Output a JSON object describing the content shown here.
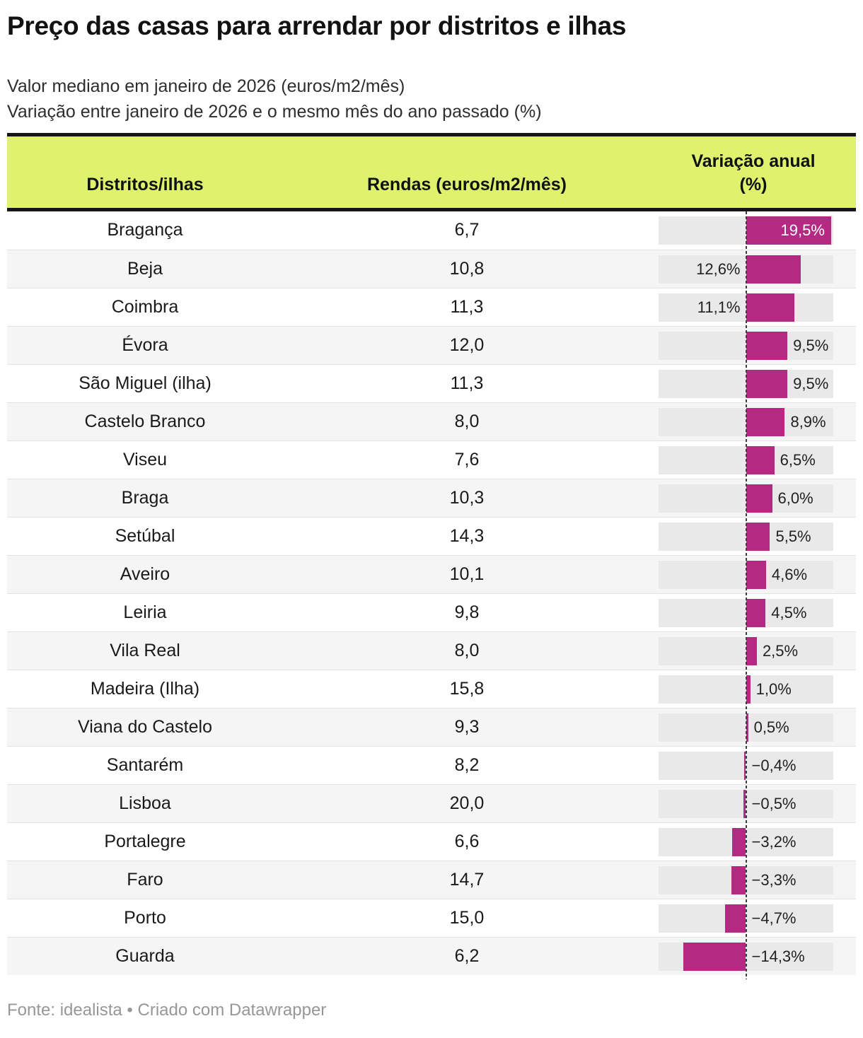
{
  "header": {
    "title": "Preço das casas para arrendar por distritos e ilhas",
    "subtitle_line1": "Valor mediano em janeiro de 2026 (euros/m2/mês)",
    "subtitle_line2": "Variação entre janeiro de 2026 e o mesmo mês do ano passado (%)"
  },
  "table": {
    "col1_header": "Distritos/ilhas",
    "col2_header": "Rendas (euros/m2/mês)",
    "col3_header_line1": "Variação anual",
    "col3_header_line2": "(%)"
  },
  "rows": [
    {
      "district": "Bragança",
      "renda": "6,7",
      "variacao": 19.5,
      "variacao_label": "19,5%"
    },
    {
      "district": "Beja",
      "renda": "10,8",
      "variacao": 12.6,
      "variacao_label": "12,6%"
    },
    {
      "district": "Coimbra",
      "renda": "11,3",
      "variacao": 11.1,
      "variacao_label": "11,1%"
    },
    {
      "district": "Évora",
      "renda": "12,0",
      "variacao": 9.5,
      "variacao_label": "9,5%"
    },
    {
      "district": "São Miguel (ilha)",
      "renda": "11,3",
      "variacao": 9.5,
      "variacao_label": "9,5%"
    },
    {
      "district": "Castelo Branco",
      "renda": "8,0",
      "variacao": 8.9,
      "variacao_label": "8,9%"
    },
    {
      "district": "Viseu",
      "renda": "7,6",
      "variacao": 6.5,
      "variacao_label": "6,5%"
    },
    {
      "district": "Braga",
      "renda": "10,3",
      "variacao": 6.0,
      "variacao_label": "6,0%"
    },
    {
      "district": "Setúbal",
      "renda": "14,3",
      "variacao": 5.5,
      "variacao_label": "5,5%"
    },
    {
      "district": "Aveiro",
      "renda": "10,1",
      "variacao": 4.6,
      "variacao_label": "4,6%"
    },
    {
      "district": "Leiria",
      "renda": "9,8",
      "variacao": 4.5,
      "variacao_label": "4,5%"
    },
    {
      "district": "Vila Real",
      "renda": "8,0",
      "variacao": 2.5,
      "variacao_label": "2,5%"
    },
    {
      "district": "Madeira (Ilha)",
      "renda": "15,8",
      "variacao": 1.0,
      "variacao_label": "1,0%"
    },
    {
      "district": "Viana do Castelo",
      "renda": "9,3",
      "variacao": 0.5,
      "variacao_label": "0,5%"
    },
    {
      "district": "Santarém",
      "renda": "8,2",
      "variacao": -0.4,
      "variacao_label": "−0,4%"
    },
    {
      "district": "Lisboa",
      "renda": "20,0",
      "variacao": -0.5,
      "variacao_label": "−0,5%"
    },
    {
      "district": "Portalegre",
      "renda": "6,6",
      "variacao": -3.2,
      "variacao_label": "−3,2%"
    },
    {
      "district": "Faro",
      "renda": "14,7",
      "variacao": -3.3,
      "variacao_label": "−3,3%"
    },
    {
      "district": "Porto",
      "renda": "15,0",
      "variacao": -4.7,
      "variacao_label": "−4,7%"
    },
    {
      "district": "Guarda",
      "renda": "6,2",
      "variacao": -14.3,
      "variacao_label": "−14,3%"
    }
  ],
  "chart_data": {
    "type": "bar",
    "orientation": "horizontal",
    "title": "Preço das casas para arrendar por distritos e ilhas",
    "subtitle": "Valor mediano em janeiro de 2026 (euros/m2/mês); Variação entre janeiro de 2026 e o mesmo mês do ano passado (%)",
    "categories": [
      "Bragança",
      "Beja",
      "Coimbra",
      "Évora",
      "São Miguel (ilha)",
      "Castelo Branco",
      "Viseu",
      "Braga",
      "Setúbal",
      "Aveiro",
      "Leiria",
      "Vila Real",
      "Madeira (Ilha)",
      "Viana do Castelo",
      "Santarém",
      "Lisboa",
      "Portalegre",
      "Faro",
      "Porto",
      "Guarda"
    ],
    "series": [
      {
        "name": "Rendas (euros/m2/mês)",
        "values": [
          6.7,
          10.8,
          11.3,
          12.0,
          11.3,
          8.0,
          7.6,
          10.3,
          14.3,
          10.1,
          9.8,
          8.0,
          15.8,
          9.3,
          8.2,
          20.0,
          6.6,
          14.7,
          15.0,
          6.2
        ]
      },
      {
        "name": "Variação anual (%)",
        "values": [
          19.5,
          12.6,
          11.1,
          9.5,
          9.5,
          8.9,
          6.5,
          6.0,
          5.5,
          4.6,
          4.5,
          2.5,
          1.0,
          0.5,
          -0.4,
          -0.5,
          -3.2,
          -3.3,
          -4.7,
          -14.3
        ]
      }
    ],
    "xlim": [
      -20,
      20
    ],
    "grid": false,
    "legend_position": "none",
    "zero_line": "dashed"
  },
  "footer": {
    "text": "Fonte: idealista • Criado com Datawrapper"
  },
  "colors": {
    "bar": "#b42a82",
    "header_bg": "#def26d",
    "row_alt": "#f5f5f5",
    "bar_track": "#e9e9e9",
    "zero_line": "#3d3d3d",
    "footer_text": "#979797"
  }
}
